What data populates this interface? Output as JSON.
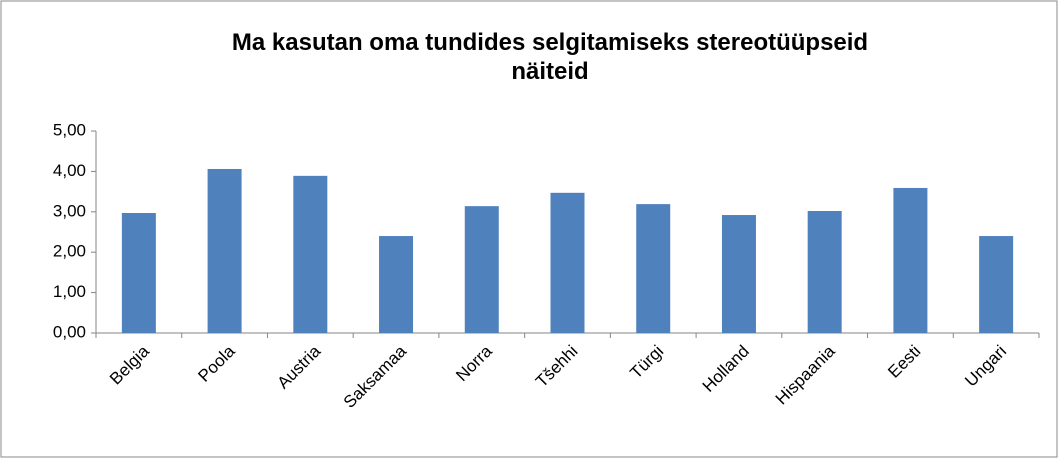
{
  "chart_data": {
    "type": "bar",
    "title": "Ma kasutan oma tundides selgitamiseks stereotüüpseid näiteid",
    "categories": [
      "Belgia",
      "Poola",
      "Austria",
      "Saksamaa",
      "Norra",
      "Tšehhi",
      "Türgi",
      "Holland",
      "Hispaania",
      "Eesti",
      "Ungari"
    ],
    "values": [
      2.97,
      4.06,
      3.89,
      2.4,
      3.14,
      3.47,
      3.19,
      2.92,
      3.02,
      3.59,
      2.4
    ],
    "color": "#4f81bd",
    "ylim": [
      0,
      5
    ],
    "yticks": [
      {
        "value": 0,
        "label": "0,00"
      },
      {
        "value": 1,
        "label": "1,00"
      },
      {
        "value": 2,
        "label": "2,00"
      },
      {
        "value": 3,
        "label": "3,00"
      },
      {
        "value": 4,
        "label": "4,00"
      },
      {
        "value": 5,
        "label": "5,00"
      }
    ],
    "grid": false
  }
}
